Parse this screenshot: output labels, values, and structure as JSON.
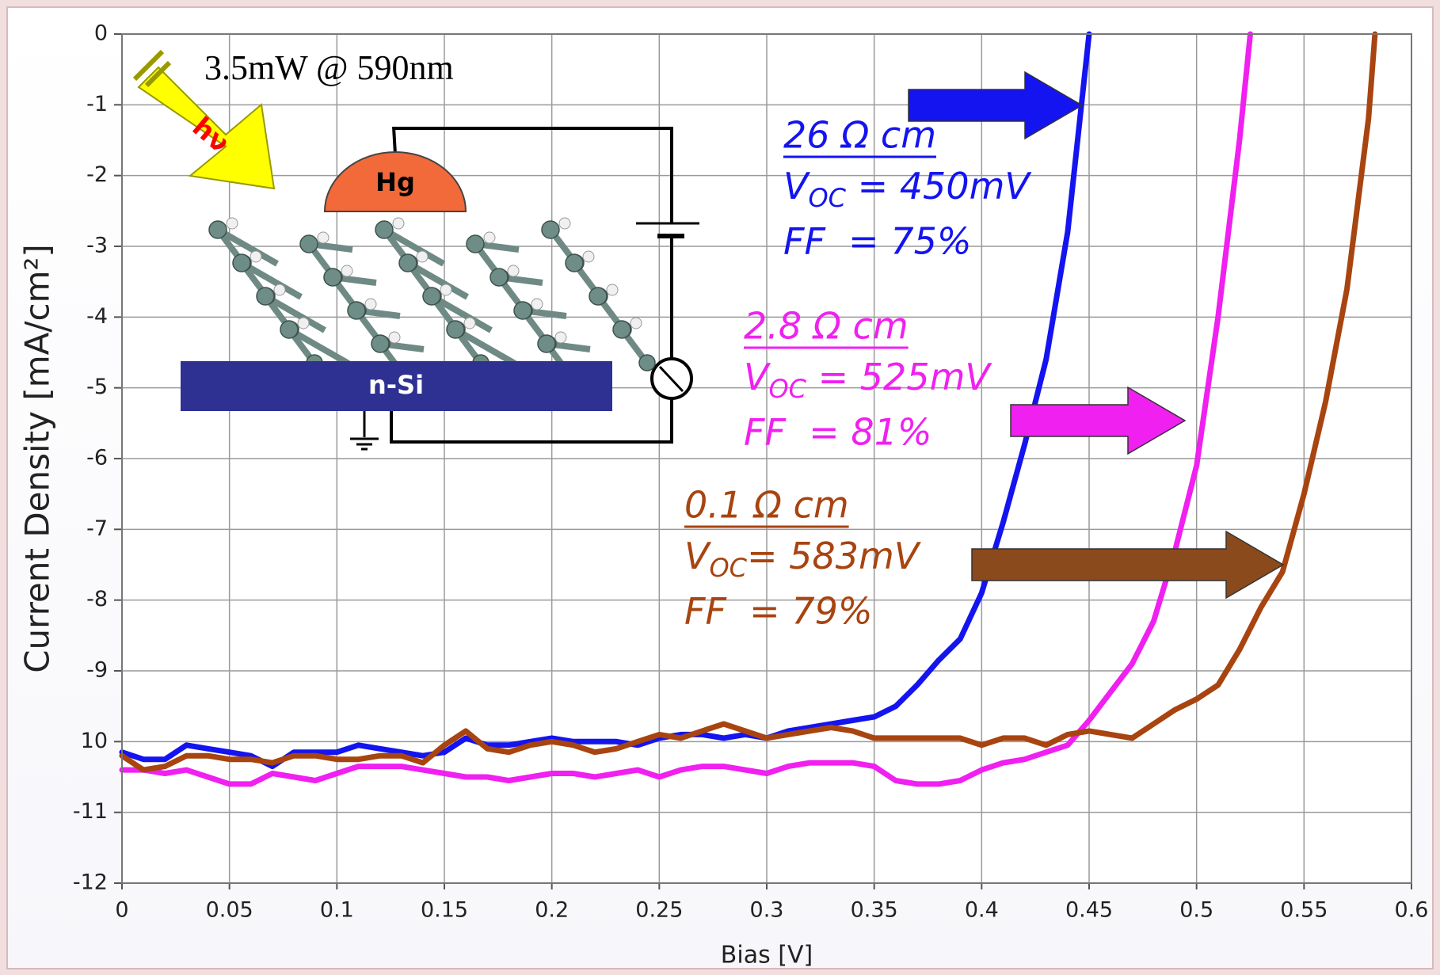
{
  "chart_data": {
    "type": "line",
    "x_label": "Bias [V]",
    "y_label": "Current Density [mA/cm²]",
    "xlim": [
      0,
      0.6
    ],
    "xticks": [
      0,
      0.05,
      0.1,
      0.15,
      0.2,
      0.25,
      0.3,
      0.35,
      0.4,
      0.45,
      0.5,
      0.55,
      0.6
    ],
    "ylim": [
      -12,
      0
    ],
    "yticks": [
      0,
      -1,
      -2,
      -3,
      -4,
      -5,
      -6,
      -7,
      -8,
      -9,
      {
        "value": -10,
        "label": "10"
      },
      -11,
      -12
    ],
    "grid": true,
    "series": [
      {
        "name": "26 Ω cm",
        "color": "#1414f0",
        "voc_symbol": "V",
        "voc_sub": "OC",
        "voc_text": " = 450mV",
        "ff_text": "FF  = 75%",
        "x": [
          0,
          0.01,
          0.02,
          0.03,
          0.04,
          0.05,
          0.06,
          0.07,
          0.08,
          0.09,
          0.1,
          0.11,
          0.12,
          0.13,
          0.14,
          0.15,
          0.16,
          0.17,
          0.18,
          0.19,
          0.2,
          0.21,
          0.22,
          0.23,
          0.24,
          0.25,
          0.26,
          0.27,
          0.28,
          0.29,
          0.3,
          0.31,
          0.32,
          0.33,
          0.34,
          0.35,
          0.36,
          0.37,
          0.38,
          0.39,
          0.4,
          0.41,
          0.42,
          0.43,
          0.44,
          0.45
        ],
        "values": [
          -10.15,
          -10.25,
          -10.25,
          -10.05,
          -10.1,
          -10.15,
          -10.2,
          -10.35,
          -10.15,
          -10.15,
          -10.15,
          -10.05,
          -10.1,
          -10.15,
          -10.2,
          -10.15,
          -9.95,
          -10.05,
          -10.05,
          -10,
          -9.95,
          -10,
          -10,
          -10,
          -10.05,
          -9.95,
          -9.9,
          -9.9,
          -9.95,
          -9.9,
          -9.95,
          -9.85,
          -9.8,
          -9.75,
          -9.7,
          -9.65,
          -9.5,
          -9.2,
          -8.85,
          -8.55,
          -7.9,
          -6.9,
          -5.8,
          -4.6,
          -2.8,
          0
        ]
      },
      {
        "name": "2.8 Ω cm",
        "color": "#f020f0",
        "voc_symbol": "V",
        "voc_sub": "OC",
        "voc_text": " = 525mV",
        "ff_text": "FF  = 81%",
        "x": [
          0,
          0.01,
          0.02,
          0.03,
          0.04,
          0.05,
          0.06,
          0.07,
          0.08,
          0.09,
          0.1,
          0.11,
          0.12,
          0.13,
          0.14,
          0.15,
          0.16,
          0.17,
          0.18,
          0.19,
          0.2,
          0.21,
          0.22,
          0.23,
          0.24,
          0.25,
          0.26,
          0.27,
          0.28,
          0.29,
          0.3,
          0.31,
          0.32,
          0.33,
          0.34,
          0.35,
          0.36,
          0.37,
          0.38,
          0.39,
          0.4,
          0.41,
          0.42,
          0.43,
          0.44,
          0.45,
          0.46,
          0.47,
          0.48,
          0.49,
          0.5,
          0.51,
          0.52,
          0.525
        ],
        "values": [
          -10.4,
          -10.4,
          -10.45,
          -10.4,
          -10.5,
          -10.6,
          -10.6,
          -10.45,
          -10.5,
          -10.55,
          -10.45,
          -10.35,
          -10.35,
          -10.35,
          -10.4,
          -10.45,
          -10.5,
          -10.5,
          -10.55,
          -10.5,
          -10.45,
          -10.45,
          -10.5,
          -10.45,
          -10.4,
          -10.5,
          -10.4,
          -10.35,
          -10.35,
          -10.4,
          -10.45,
          -10.35,
          -10.3,
          -10.3,
          -10.3,
          -10.35,
          -10.55,
          -10.6,
          -10.6,
          -10.55,
          -10.4,
          -10.3,
          -10.25,
          -10.15,
          -10.05,
          -9.7,
          -9.3,
          -8.9,
          -8.3,
          -7.3,
          -6.1,
          -4,
          -1.5,
          0
        ]
      },
      {
        "name": "0.1 Ω cm",
        "color": "#a84410",
        "voc_symbol": "V",
        "voc_sub": "OC",
        "voc_text": "= 583mV",
        "ff_text": "FF  = 79%",
        "x": [
          0,
          0.01,
          0.02,
          0.03,
          0.04,
          0.05,
          0.06,
          0.07,
          0.08,
          0.09,
          0.1,
          0.11,
          0.12,
          0.13,
          0.14,
          0.15,
          0.16,
          0.17,
          0.18,
          0.19,
          0.2,
          0.21,
          0.22,
          0.23,
          0.24,
          0.25,
          0.26,
          0.27,
          0.28,
          0.29,
          0.3,
          0.31,
          0.32,
          0.33,
          0.34,
          0.35,
          0.36,
          0.37,
          0.38,
          0.39,
          0.4,
          0.41,
          0.42,
          0.43,
          0.44,
          0.45,
          0.46,
          0.47,
          0.48,
          0.49,
          0.5,
          0.51,
          0.52,
          0.53,
          0.54,
          0.55,
          0.56,
          0.57,
          0.58,
          0.583
        ],
        "values": [
          -10.2,
          -10.4,
          -10.35,
          -10.2,
          -10.2,
          -10.25,
          -10.25,
          -10.3,
          -10.2,
          -10.2,
          -10.25,
          -10.25,
          -10.2,
          -10.2,
          -10.3,
          -10.05,
          -9.85,
          -10.1,
          -10.15,
          -10.05,
          -10,
          -10.05,
          -10.15,
          -10.1,
          -10,
          -9.9,
          -9.95,
          -9.85,
          -9.75,
          -9.85,
          -9.95,
          -9.9,
          -9.85,
          -9.8,
          -9.85,
          -9.95,
          -9.95,
          -9.95,
          -9.95,
          -9.95,
          -10.05,
          -9.95,
          -9.95,
          -10.05,
          -9.9,
          -9.85,
          -9.9,
          -9.95,
          -9.75,
          -9.55,
          -9.4,
          -9.2,
          -8.7,
          -8.1,
          -7.6,
          -6.5,
          -5.2,
          -3.6,
          -1.2,
          0
        ]
      }
    ]
  },
  "inset": {
    "light_label": "3.5mW @ 590nm",
    "photon_label": "hν",
    "contact_label": "Hg",
    "substrate_label": "n-Si"
  }
}
